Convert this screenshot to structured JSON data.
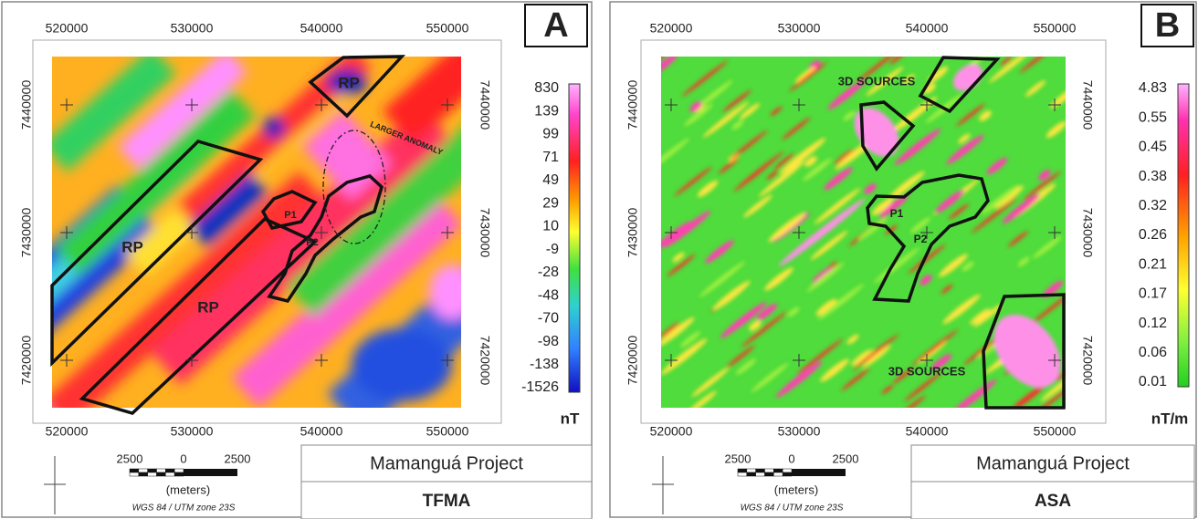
{
  "panels": [
    {
      "letter": "A",
      "x_ticks": [
        "520000",
        "530000",
        "540000",
        "550000"
      ],
      "y_ticks": [
        "7440000",
        "7430000",
        "7420000"
      ],
      "annotations": [
        "RP",
        "RP",
        "RP",
        "LARGER ANOMALY",
        "P1",
        "P2"
      ],
      "colorbar": {
        "labels": [
          "830",
          "139",
          "99",
          "71",
          "49",
          "29",
          "10",
          "-9",
          "-28",
          "-48",
          "-70",
          "-98",
          "-138",
          "-1526"
        ],
        "unit": "nT"
      },
      "scale": {
        "labels": [
          "2500",
          "0",
          "2500"
        ],
        "unit": "(meters)",
        "datum": "WGS 84 / UTM zone 23S"
      },
      "project": "Mamanguá Project",
      "product": "TFMA"
    },
    {
      "letter": "B",
      "x_ticks": [
        "520000",
        "530000",
        "540000",
        "550000"
      ],
      "y_ticks": [
        "7440000",
        "7430000",
        "7420000"
      ],
      "annotations": [
        "3D SOURCES",
        "P1",
        "P2",
        "3D SOURCES"
      ],
      "colorbar": {
        "labels": [
          "4.83",
          "0.55",
          "0.45",
          "0.38",
          "0.32",
          "0.26",
          "0.21",
          "0.17",
          "0.12",
          "0.06",
          "0.01"
        ],
        "unit": "nT/m"
      },
      "scale": {
        "labels": [
          "2500",
          "0",
          "2500"
        ],
        "unit": "(meters)",
        "datum": "WGS 84 / UTM zone 23S"
      },
      "project": "Mamanguá Project",
      "product": "ASA"
    }
  ]
}
